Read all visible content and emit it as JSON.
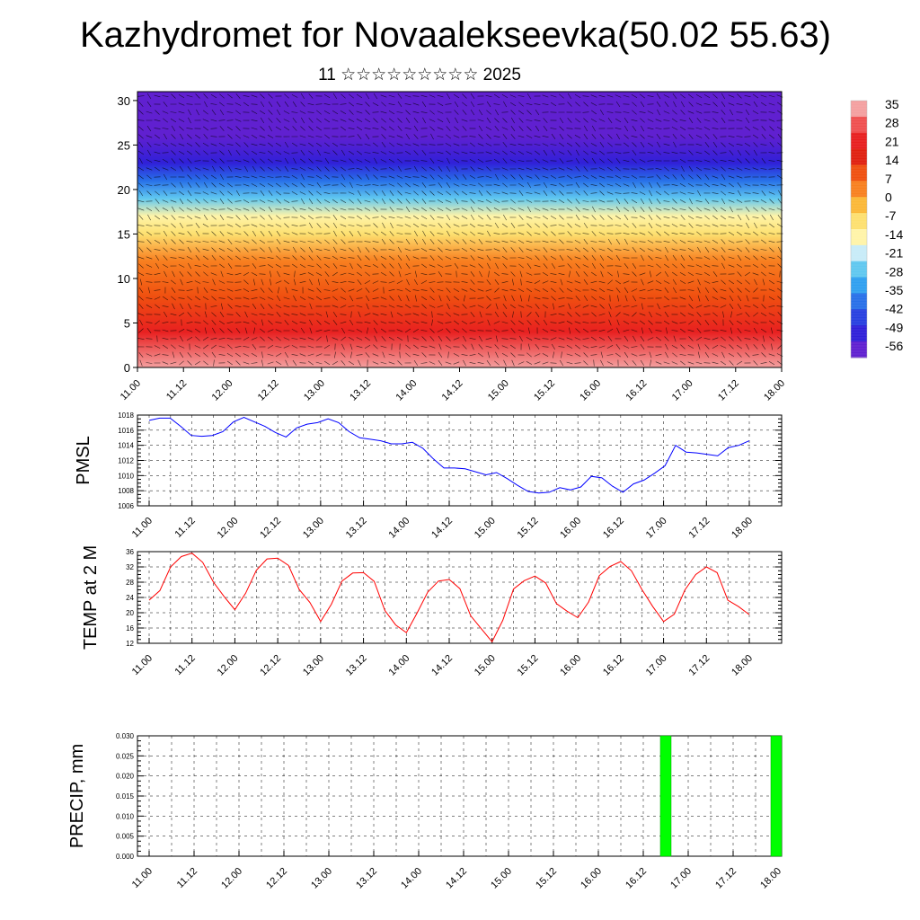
{
  "header": {
    "title": "Kazhydromet for Novaalekseevka(50.02 55.63)",
    "subtitle": "11 ☆☆☆☆☆☆☆☆☆ 2025"
  },
  "chart_data": [
    {
      "type": "heatmap",
      "name": "vertical-temperature-wind",
      "x_ticks": [
        "11.00",
        "11.12",
        "12.00",
        "12.12",
        "13.00",
        "13.12",
        "14.00",
        "14.12",
        "15.00",
        "15.12",
        "16.00",
        "16.12",
        "17.00",
        "17.12",
        "18.00"
      ],
      "y_ticks": [
        0,
        5,
        10,
        15,
        20,
        25,
        30
      ],
      "ylim": [
        0,
        31
      ],
      "colorbar": {
        "labels": [
          35,
          28,
          21,
          14,
          7,
          0,
          -7,
          -14,
          -21,
          -28,
          -35,
          -42,
          -49,
          -56
        ],
        "colors": [
          "#f4a0a0",
          "#ef5050",
          "#e82020",
          "#e02010",
          "#f05010",
          "#f88020",
          "#fbb838",
          "#fde070",
          "#fff4a8",
          "#c8ecf8",
          "#60c8f0",
          "#30a0f0",
          "#2870e8",
          "#2840e0",
          "#3020d8",
          "#6020d0"
        ]
      },
      "layers": [
        {
          "height": 0,
          "temp": 30
        },
        {
          "height": 4,
          "temp": 22
        },
        {
          "height": 8,
          "temp": 12
        },
        {
          "height": 12,
          "temp": 2
        },
        {
          "height": 15,
          "temp": -8
        },
        {
          "height": 17,
          "temp": -16
        },
        {
          "height": 19,
          "temp": -26
        },
        {
          "height": 21,
          "temp": -36
        },
        {
          "height": 23,
          "temp": -46
        },
        {
          "height": 26,
          "temp": -54
        },
        {
          "height": 31,
          "temp": -58
        }
      ]
    },
    {
      "type": "line",
      "name": "pmsl",
      "ylabel": "PMSL",
      "ylim": [
        1006,
        1018
      ],
      "y_ticks": [
        1006,
        1008,
        1010,
        1012,
        1014,
        1016,
        1018
      ],
      "x_ticks": [
        "11.00",
        "11.12",
        "12.00",
        "12.12",
        "13.00",
        "13.12",
        "14.00",
        "14.12",
        "15.00",
        "15.12",
        "16.00",
        "16.12",
        "17.00",
        "17.12",
        "18.00"
      ],
      "color": "#0000ff",
      "series": [
        {
          "values": [
            1017.3,
            1017.6,
            1017.6,
            1016.5,
            1015.3,
            1015.2,
            1015.3,
            1015.8,
            1017.1,
            1017.7,
            1017.1,
            1016.5,
            1015.7,
            1015.1,
            1016.3,
            1016.8,
            1017.0,
            1017.5,
            1017.0,
            1015.8,
            1015.0,
            1014.8,
            1014.6,
            1014.2,
            1014.2,
            1014.4,
            1013.6,
            1012.2,
            1011.0,
            1011.0,
            1010.9,
            1010.5,
            1010.1,
            1010.4,
            1009.6,
            1008.7,
            1007.9,
            1007.7,
            1007.8,
            1008.4,
            1008.1,
            1008.5,
            1009.9,
            1009.7,
            1008.6,
            1007.8,
            1008.9,
            1009.4,
            1010.3,
            1011.3,
            1014.0,
            1013.1,
            1013.0,
            1012.8,
            1012.6,
            1013.7,
            1014.0,
            1014.6
          ]
        }
      ]
    },
    {
      "type": "line",
      "name": "temp-2m",
      "ylabel": "TEMP at 2 M",
      "ylim": [
        12,
        36
      ],
      "y_ticks": [
        12,
        16,
        20,
        24,
        28,
        32,
        36
      ],
      "x_ticks": [
        "11.00",
        "11.12",
        "12.00",
        "12.12",
        "13.00",
        "13.12",
        "14.00",
        "14.12",
        "15.00",
        "15.12",
        "16.00",
        "16.12",
        "17.00",
        "17.12",
        "18.00"
      ],
      "color": "#ff0000",
      "series": [
        {
          "values": [
            23.3,
            25.8,
            32.0,
            34.7,
            35.6,
            33.2,
            28.0,
            24.2,
            20.8,
            25.1,
            31.1,
            34.1,
            34.3,
            32.4,
            26.1,
            22.7,
            17.7,
            22.2,
            28.3,
            30.4,
            30.5,
            28.2,
            20.6,
            16.8,
            14.8,
            19.9,
            25.4,
            28.3,
            28.7,
            26.3,
            19.2,
            15.8,
            12.4,
            18.0,
            26.2,
            28.4,
            29.6,
            27.8,
            22.4,
            20.4,
            18.7,
            22.8,
            29.7,
            32.1,
            33.4,
            31.0,
            26.0,
            21.6,
            17.7,
            19.6,
            26.0,
            30.0,
            32.0,
            30.5,
            23.3,
            21.6,
            19.5
          ]
        }
      ]
    },
    {
      "type": "bar",
      "name": "precip",
      "ylabel": "PRECIP, mm",
      "ylim": [
        0,
        0.03
      ],
      "y_ticks": [
        "0.000",
        "0.005",
        "0.010",
        "0.015",
        "0.020",
        "0.025",
        "0.030"
      ],
      "x_ticks": [
        "11.00",
        "11.12",
        "12.00",
        "12.12",
        "13.00",
        "13.12",
        "14.00",
        "14.12",
        "15.00",
        "15.12",
        "16.00",
        "16.12",
        "17.00",
        "17.12",
        "18.00"
      ],
      "color": "#00ff00",
      "bars": [
        {
          "x": 16.75,
          "value": 0.03
        },
        {
          "x": 18.0,
          "value": 0.03
        }
      ]
    }
  ]
}
